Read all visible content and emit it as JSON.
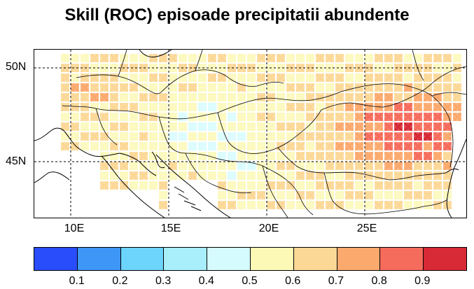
{
  "title": "Skill (ROC) episoade precipitatii abundente",
  "lat_labels": [
    "50N",
    "45N"
  ],
  "lon_labels": [
    "10E",
    "15E",
    "20E",
    "25E"
  ],
  "colorbar": {
    "colors": [
      "#2a4dfb",
      "#3e96f7",
      "#6dd4fb",
      "#a8eefb",
      "#d6fbff",
      "#fcf8b6",
      "#fcd897",
      "#fca96d",
      "#f66c5c",
      "#d72a36"
    ],
    "tick_labels": [
      "0.1",
      "0.2",
      "0.3",
      "0.4",
      "0.5",
      "0.6",
      "0.7",
      "0.8",
      "0.9"
    ]
  }
}
